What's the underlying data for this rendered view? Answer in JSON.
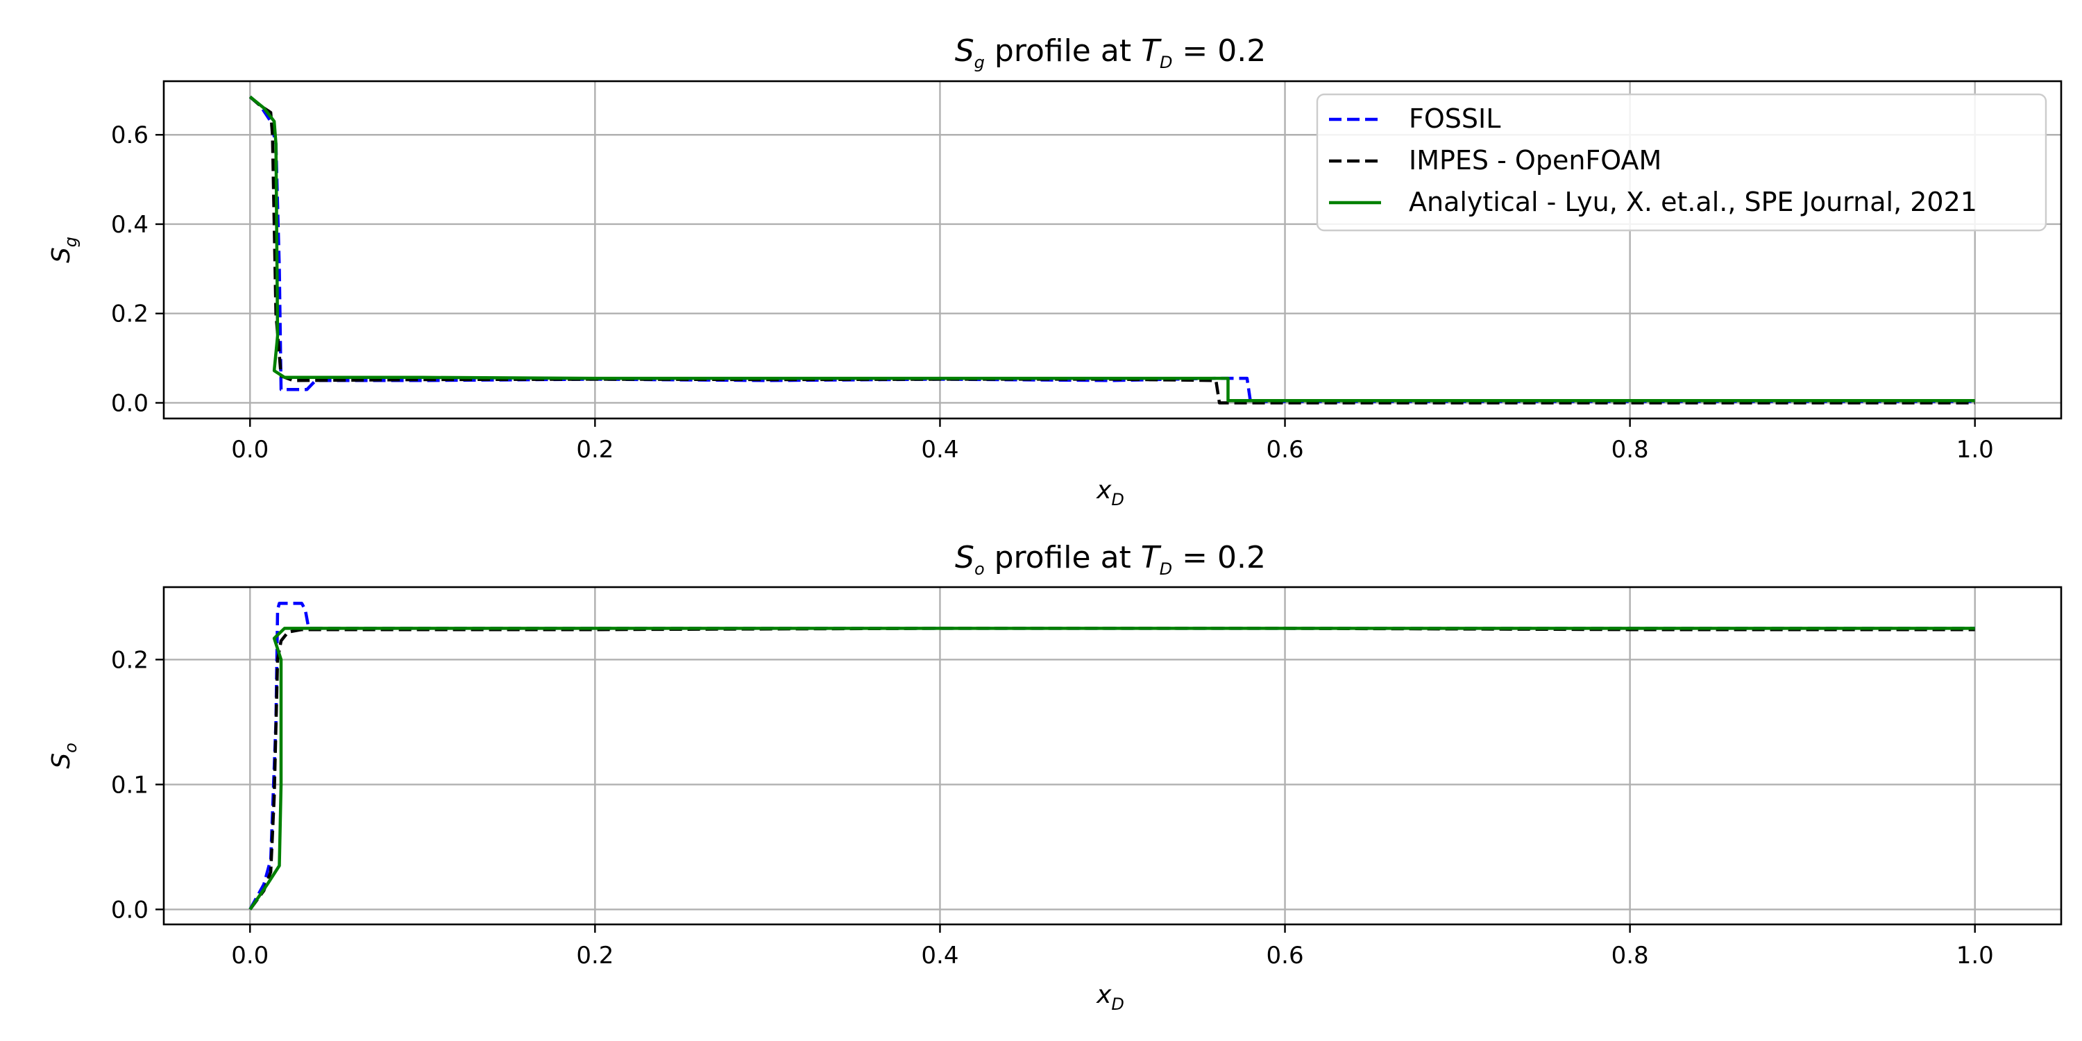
{
  "chart_data": [
    {
      "type": "line",
      "title_pre": "S",
      "title_sub": "g",
      "title_mid": " profile at ",
      "title_var": "T",
      "title_var_sub": "D",
      "title_post": " = 0.2",
      "xlabel": "x",
      "xlabel_sub": "D",
      "ylabel": "S",
      "ylabel_sub": "g",
      "xlim": [
        -0.05,
        1.05
      ],
      "ylim": [
        -0.035,
        0.72
      ],
      "xticks": [
        0.0,
        0.2,
        0.4,
        0.6,
        0.8,
        1.0
      ],
      "xtick_labels": [
        "0.0",
        "0.2",
        "0.4",
        "0.6",
        "0.8",
        "1.0"
      ],
      "yticks": [
        0.0,
        0.2,
        0.4,
        0.6
      ],
      "ytick_labels": [
        "0.0",
        "0.2",
        "0.4",
        "0.6"
      ],
      "grid": true,
      "legend_position": "top-right",
      "series": [
        {
          "name": "FOSSIL",
          "color": "#0000ff",
          "style": "dashed",
          "x": [
            0.0,
            0.006,
            0.012,
            0.015,
            0.017,
            0.018,
            0.02,
            0.028,
            0.033,
            0.038,
            0.1,
            0.2,
            0.3,
            0.4,
            0.5,
            0.56,
            0.565,
            0.575,
            0.578,
            0.58,
            0.6,
            0.8,
            1.0
          ],
          "y": [
            0.685,
            0.665,
            0.63,
            0.58,
            0.3,
            0.03,
            0.03,
            0.03,
            0.03,
            0.05,
            0.05,
            0.053,
            0.05,
            0.053,
            0.05,
            0.055,
            0.055,
            0.055,
            0.055,
            0.003,
            0.003,
            0.003,
            0.003
          ]
        },
        {
          "name": "IMPES - OpenFOAM",
          "color": "#000000",
          "style": "dashed",
          "x": [
            0.0,
            0.006,
            0.01,
            0.012,
            0.013,
            0.015,
            0.018,
            0.025,
            0.1,
            0.2,
            0.3,
            0.4,
            0.5,
            0.56,
            0.562,
            0.565,
            0.6,
            0.8,
            1.0
          ],
          "y": [
            0.685,
            0.665,
            0.655,
            0.65,
            0.6,
            0.2,
            0.06,
            0.05,
            0.052,
            0.053,
            0.052,
            0.053,
            0.053,
            0.05,
            0.0,
            0.0,
            0.0,
            0.0,
            0.0
          ]
        },
        {
          "name": "Analytical - Lyu, X. et.al., SPE Journal, 2021",
          "color": "#008000",
          "style": "solid",
          "x": [
            0.0,
            0.008,
            0.014,
            0.015,
            0.016,
            0.014,
            0.02,
            0.1,
            0.2,
            0.3,
            0.4,
            0.5,
            0.567,
            0.567,
            0.6,
            0.8,
            1.0
          ],
          "y": [
            0.685,
            0.66,
            0.63,
            0.58,
            0.15,
            0.072,
            0.057,
            0.057,
            0.055,
            0.055,
            0.055,
            0.055,
            0.055,
            0.005,
            0.005,
            0.005,
            0.005
          ]
        }
      ]
    },
    {
      "type": "line",
      "title_pre": "S",
      "title_sub": "o",
      "title_mid": " profile at ",
      "title_var": "T",
      "title_var_sub": "D",
      "title_post": " = 0.2",
      "xlabel": "x",
      "xlabel_sub": "D",
      "ylabel": "S",
      "ylabel_sub": "o",
      "xlim": [
        -0.05,
        1.05
      ],
      "ylim": [
        -0.012,
        0.258
      ],
      "xticks": [
        0.0,
        0.2,
        0.4,
        0.6,
        0.8,
        1.0
      ],
      "xtick_labels": [
        "0.0",
        "0.2",
        "0.4",
        "0.6",
        "0.8",
        "1.0"
      ],
      "yticks": [
        0.0,
        0.1,
        0.2
      ],
      "ytick_labels": [
        "0.0",
        "0.1",
        "0.2"
      ],
      "grid": true,
      "series": [
        {
          "name": "FOSSIL",
          "color": "#0000ff",
          "style": "dashed",
          "x": [
            0.0,
            0.008,
            0.012,
            0.015,
            0.016,
            0.017,
            0.018,
            0.03,
            0.032,
            0.034,
            0.04,
            0.2,
            0.4,
            0.6,
            0.8,
            1.0
          ],
          "y": [
            0.0,
            0.02,
            0.04,
            0.15,
            0.24,
            0.245,
            0.245,
            0.245,
            0.24,
            0.225,
            0.225,
            0.225,
            0.225,
            0.225,
            0.225,
            0.225
          ]
        },
        {
          "name": "IMPES - OpenFOAM",
          "color": "#000000",
          "style": "dashed",
          "x": [
            0.0,
            0.008,
            0.012,
            0.014,
            0.016,
            0.018,
            0.022,
            0.03,
            0.2,
            0.4,
            0.6,
            0.8,
            1.0
          ],
          "y": [
            0.0,
            0.015,
            0.03,
            0.09,
            0.2,
            0.215,
            0.222,
            0.224,
            0.224,
            0.225,
            0.225,
            0.224,
            0.224
          ]
        },
        {
          "name": "Analytical - Lyu, X. et.al., SPE Journal, 2021",
          "color": "#008000",
          "style": "solid",
          "x": [
            0.0,
            0.01,
            0.017,
            0.018,
            0.018,
            0.014,
            0.02,
            0.2,
            0.4,
            0.6,
            0.8,
            1.0
          ],
          "y": [
            0.0,
            0.02,
            0.035,
            0.1,
            0.2,
            0.217,
            0.225,
            0.225,
            0.225,
            0.225,
            0.225,
            0.225
          ]
        }
      ]
    }
  ]
}
